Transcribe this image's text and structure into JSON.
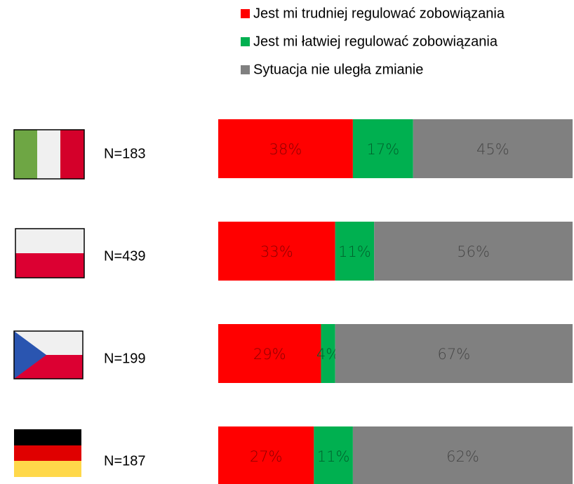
{
  "chart_data": {
    "type": "stacked_barh",
    "categories": [
      "N=183",
      "N=439",
      "N=199",
      "N=187"
    ],
    "series": [
      {
        "name": "Jest mi trudniej regulować zobowiązania",
        "color": "#ff0000",
        "values": [
          38,
          33,
          29,
          27
        ],
        "value_labels": [
          "38%",
          "33%",
          "29%",
          "27%"
        ]
      },
      {
        "name": "Jest mi łatwiej regulować zobowiązania",
        "color": "#00b050",
        "values": [
          17,
          11,
          4,
          11
        ],
        "value_labels": [
          "17%",
          "11%",
          "4%",
          "11%"
        ]
      },
      {
        "name": "Sytuacja nie uległa zmianie",
        "color": "#808080",
        "values": [
          45,
          56,
          67,
          62
        ],
        "value_labels": [
          "45%",
          "56%",
          "67%",
          "62%"
        ]
      }
    ],
    "xlim": [
      0,
      100
    ],
    "legend": "top"
  }
}
